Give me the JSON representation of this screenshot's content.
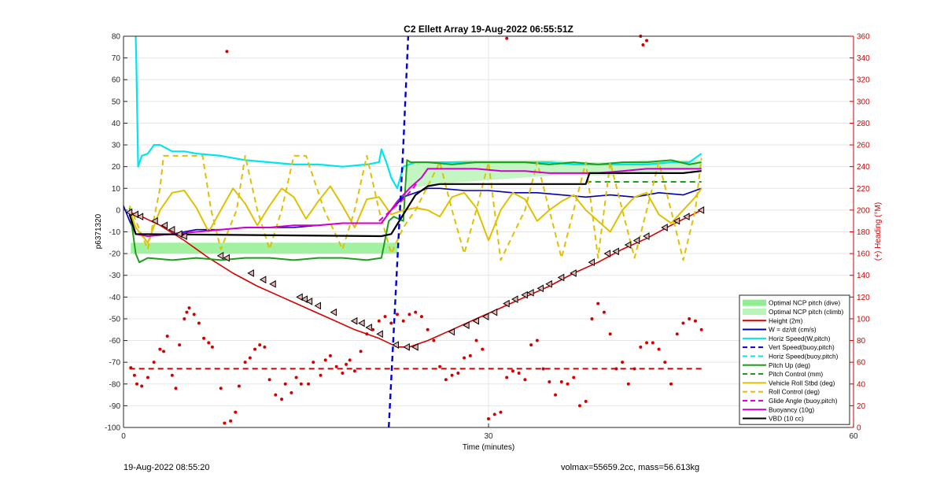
{
  "chart_data": {
    "type": "line",
    "title": "C2 Ellett Array 19-Aug-2022 06:55:51Z",
    "xlabel": "Time (minutes)",
    "ylabel_left": "p6371320",
    "ylabel_right": "(+) Heading (°M)",
    "xlim": [
      0,
      60
    ],
    "ylim_left": [
      -100,
      80
    ],
    "ylim_right": [
      0,
      360
    ],
    "x_ticks": [
      0,
      30,
      60
    ],
    "y_ticks_left": [
      80,
      70,
      60,
      50,
      40,
      30,
      20,
      10,
      0,
      -10,
      -20,
      -30,
      -40,
      -50,
      -60,
      -70,
      -80,
      -90,
      -100
    ],
    "y_ticks_right": [
      360,
      340,
      320,
      300,
      280,
      260,
      240,
      220,
      200,
      180,
      160,
      140,
      120,
      100,
      80,
      60,
      40,
      20,
      0
    ],
    "grid": true,
    "legend_position": "bottom-right",
    "colors": {
      "height": "#d40000",
      "w": "#0000b0",
      "horiz_speed": "#00e5ee",
      "vert_speed_buoy": "#0000d0",
      "pitch_up": "#1aa01a",
      "roll": "#e0c000",
      "glide": "#e000e0",
      "buoyancy": "#d000d0",
      "vbd": "#000000",
      "optimal": "#90ee90",
      "heading": "#d40000",
      "right_axis": "#d40000"
    },
    "legend": [
      {
        "label": "Optimal NCP pitch (dive)",
        "style": "patch",
        "color": "#90ee90"
      },
      {
        "label": "Optimal NCP pitch (climb)",
        "style": "patch",
        "color": "#b8f5b8"
      },
      {
        "label": "Height (2m)",
        "style": "solid",
        "color": "#d40000"
      },
      {
        "label": "W = dz/dt (cm/s)",
        "style": "solid",
        "color": "#0000b0"
      },
      {
        "label": "Horiz Speed(W,pitch)",
        "style": "solid",
        "color": "#00e5ee"
      },
      {
        "label": "Vert Speed(buoy,pitch)",
        "style": "dashed",
        "color": "#0000d0"
      },
      {
        "label": "Horiz Speed(buoy,pitch)",
        "style": "dashed",
        "color": "#00e5ee"
      },
      {
        "label": "Pitch Up (deg)",
        "style": "solid",
        "color": "#1aa01a"
      },
      {
        "label": "Pitch Control (mm)",
        "style": "dashed",
        "color": "#1aa01a"
      },
      {
        "label": "Vehicle Roll Stbd (deg)",
        "style": "solid",
        "color": "#e0c000"
      },
      {
        "label": "Roll Control (deg)",
        "style": "dashed",
        "color": "#e0c000"
      },
      {
        "label": "Glide Angle (buoy,pitch)",
        "style": "dashed",
        "color": "#e000e0"
      },
      {
        "label": "Buoyancy (10g)",
        "style": "solid",
        "color": "#d000d0"
      },
      {
        "label": "VBD (10 cc)",
        "style": "solid",
        "color": "#000000"
      }
    ],
    "series": [
      {
        "name": "Height (2m)",
        "color": "#d40000",
        "style": "solid",
        "width": 1.6,
        "x": [
          0.5,
          1.5,
          3,
          5,
          7,
          9,
          11,
          13,
          15,
          17,
          19,
          21,
          22.5,
          23.5,
          25,
          27,
          29,
          31,
          33,
          35,
          37,
          39,
          41,
          43,
          45,
          47.5
        ],
        "y": [
          -1,
          -3,
          -7,
          -14,
          -22,
          -29,
          -35,
          -40,
          -45,
          -50,
          -55,
          -59,
          -63,
          -63,
          -60,
          -55,
          -50,
          -45,
          -40,
          -35,
          -29,
          -24,
          -18,
          -13,
          -7,
          0
        ]
      },
      {
        "name": "Height markers",
        "color": "#000000",
        "style": "triangle-marker",
        "width": 1,
        "x": [
          0.5,
          1.0,
          1.4,
          2.6,
          3.4,
          4.0,
          4.6,
          5.0,
          8.0,
          8.5,
          10.5,
          11.5,
          12.3,
          14.5,
          14.9,
          15.3,
          16.0,
          17.3,
          19.0,
          19.6,
          20.2,
          21.1,
          22.4,
          23.3,
          24.0,
          27.0,
          28.2,
          29.0,
          29.8,
          30.5,
          31.5,
          32.2,
          33.0,
          33.5,
          34.3,
          35.0,
          36.0,
          37.0,
          38.5,
          39.8,
          40.5,
          41.5,
          42.2,
          43.0,
          44.5,
          45.5,
          46.3,
          47.5
        ],
        "y": [
          -1,
          -2,
          -3,
          -5,
          -7,
          -9,
          -11,
          -12,
          -21,
          -22,
          -29,
          -32,
          -34,
          -40,
          -41,
          -42,
          -44,
          -47,
          -51,
          -52,
          -54,
          -57,
          -62,
          -63,
          -63,
          -56,
          -53,
          -51,
          -49,
          -47,
          -43,
          -41,
          -39,
          -38,
          -36,
          -34,
          -31,
          -29,
          -24,
          -20,
          -19,
          -16,
          -14,
          -12,
          -8,
          -5,
          -3,
          0
        ]
      },
      {
        "name": "W = dz/dt (cm/s)",
        "color": "#0000b0",
        "style": "solid",
        "width": 1.6,
        "x": [
          0,
          0.5,
          1,
          2,
          4,
          6,
          8,
          10,
          12,
          14,
          16,
          18,
          20,
          21.2,
          22,
          22.5,
          23,
          24,
          25,
          26,
          28,
          30,
          32,
          34,
          36,
          38,
          40,
          42,
          44,
          46,
          47.5
        ],
        "y": [
          2,
          -5,
          -11,
          -12,
          -11,
          -9,
          -9,
          -8,
          -8,
          -8,
          -7,
          -6,
          -6,
          -6,
          0,
          3,
          6,
          8,
          10,
          10,
          9,
          9,
          8,
          8,
          7,
          6,
          7,
          6,
          8,
          7,
          10
        ]
      },
      {
        "name": "Horiz Speed(W,pitch)",
        "color": "#00e5ee",
        "style": "solid",
        "width": 2.2,
        "x": [
          1,
          1.05,
          1.2,
          1.5,
          2,
          2.5,
          3,
          4,
          5,
          6,
          8,
          10,
          12,
          14,
          16,
          18,
          20,
          21,
          21.2,
          21.6,
          22,
          22.5,
          23,
          24,
          25,
          27,
          29,
          31,
          33,
          35,
          37,
          39,
          41,
          43,
          45,
          46.5,
          47.5
        ],
        "y": [
          80,
          70,
          20,
          25,
          26,
          30,
          30,
          27,
          27,
          26,
          25,
          23,
          22,
          21,
          21,
          20,
          21,
          22,
          28,
          22,
          15,
          10,
          20,
          22,
          22,
          22,
          22,
          22,
          22,
          22,
          21,
          21,
          21,
          21,
          22,
          22,
          26
        ]
      },
      {
        "name": "Pitch Up (deg)",
        "color": "#1aa01a",
        "style": "solid",
        "width": 2,
        "x": [
          0.5,
          1,
          1.3,
          2,
          4,
          6,
          8,
          10,
          12,
          14,
          16,
          18,
          20,
          21.2,
          21.8,
          22.2,
          23,
          23.3,
          23.6,
          25,
          27,
          29,
          31,
          33,
          35,
          37,
          39,
          41,
          43,
          45,
          46.5,
          47.5
        ],
        "y": [
          1,
          -20,
          -24,
          -22,
          -23,
          -22,
          -23,
          -22,
          -22,
          -23,
          -22,
          -22,
          -23,
          -22,
          -5,
          -3,
          -5,
          23,
          22,
          22,
          21,
          22,
          22,
          22,
          21,
          22,
          21,
          22,
          22,
          23,
          21,
          22
        ]
      },
      {
        "name": "Pitch Control (mm)",
        "color": "#1aa01a",
        "style": "dashed",
        "width": 2,
        "x": [
          38,
          47.5
        ],
        "y": [
          13,
          13
        ]
      },
      {
        "name": "Vehicle Roll Stbd (deg)",
        "color": "#e0c000",
        "style": "solid",
        "width": 2,
        "x": [
          0.5,
          1,
          2,
          3,
          4,
          5,
          6,
          7,
          8,
          9,
          10,
          11,
          12,
          13,
          14,
          15,
          16,
          17,
          18,
          19,
          20,
          21,
          22,
          23,
          24,
          25,
          26,
          27,
          28,
          29,
          30,
          31,
          32,
          33,
          34,
          35,
          36,
          37,
          38,
          39,
          40,
          41,
          42,
          43,
          44,
          45,
          46,
          47,
          47.5
        ],
        "y": [
          0,
          -8,
          -15,
          0,
          8,
          9,
          1,
          -10,
          0,
          10,
          3,
          -7,
          2,
          10,
          6,
          -4,
          4,
          11,
          2,
          -8,
          5,
          6,
          -2,
          0,
          1,
          0,
          -3,
          6,
          8,
          1,
          -14,
          0,
          8,
          5,
          -5,
          0,
          4,
          7,
          0,
          -5,
          -10,
          0,
          6,
          8,
          -2,
          -6,
          0,
          6,
          10
        ]
      },
      {
        "name": "Roll Control (deg)",
        "color": "#e0c000",
        "style": "dashed",
        "width": 2,
        "x": [
          0.5,
          2,
          3,
          3.3,
          5,
          6.5,
          7.2,
          8,
          9.3,
          10,
          11,
          12,
          13,
          14,
          15,
          16.5,
          18,
          19,
          20,
          21,
          22,
          23,
          24,
          26,
          27,
          28,
          29,
          30,
          31,
          33,
          34,
          35,
          36,
          37,
          38,
          39,
          40,
          41,
          42,
          43,
          44,
          45,
          46,
          47,
          47.5
        ],
        "y": [
          2,
          -18,
          10,
          25,
          25,
          25,
          0,
          -18,
          0,
          25,
          0,
          -18,
          0,
          25,
          25,
          0,
          -18,
          0,
          25,
          0,
          -20,
          -8,
          0,
          22,
          0,
          -20,
          0,
          22,
          -23,
          0,
          22,
          0,
          -22,
          0,
          22,
          -22,
          22,
          0,
          -22,
          0,
          22,
          0,
          -23,
          0,
          24
        ]
      },
      {
        "name": "Glide Angle (buoy,pitch)",
        "color": "#e000e0",
        "style": "dashed",
        "width": 2,
        "x": [
          21,
          22,
          23,
          23.8,
          24.3
        ],
        "y": [
          -5,
          0,
          5,
          10,
          14
        ]
      },
      {
        "name": "Buoyancy (10g)",
        "color": "#d000d0",
        "style": "solid",
        "width": 2,
        "x": [
          0.5,
          1,
          2,
          4,
          6,
          8,
          10,
          12,
          14,
          16,
          18,
          20,
          21.2,
          22.5,
          23.5,
          24.5,
          25,
          27,
          29,
          31,
          33,
          35,
          37,
          39,
          41,
          43,
          45,
          47.5
        ],
        "y": [
          -2,
          -11,
          -12,
          -11,
          -10,
          -9,
          -8,
          -8,
          -7,
          -7,
          -6,
          -6,
          -6,
          4,
          10,
          15,
          19,
          19,
          19,
          18,
          18,
          17,
          17,
          17,
          18,
          19,
          19,
          19
        ]
      },
      {
        "name": "VBD (10 cc)",
        "color": "#000000",
        "style": "solid",
        "width": 2.2,
        "x": [
          0.5,
          1,
          21.2,
          22,
          23,
          24,
          25,
          26,
          38,
          38.3,
          45,
          46,
          47.5
        ],
        "y": [
          -2,
          -11,
          -12,
          -11,
          -2,
          7,
          11,
          12,
          12,
          17,
          17,
          17,
          18
        ]
      },
      {
        "name": "Vert Speed(buoy,pitch)",
        "color": "#0000d0",
        "style": "dashed",
        "width": 2.4,
        "x": [
          21.8,
          23.0,
          23.4
        ],
        "y": [
          -100,
          30,
          80
        ]
      },
      {
        "name": "Heading mean",
        "color": "#d40000",
        "style": "dashed",
        "width": 2,
        "x": [
          0.5,
          47.5
        ],
        "y": [
          -73,
          -73
        ]
      }
    ],
    "bands": [
      {
        "name": "Optimal NCP pitch (dive)",
        "color": "#90ee90",
        "x": [
          0.6,
          22.5
        ],
        "y0": -15,
        "y1": -20
      },
      {
        "name": "Optimal NCP pitch (climb)",
        "color": "#b8f5b8",
        "x_start": 23.3,
        "x_end": 47.5,
        "upper": [
          22,
          22,
          23,
          23,
          23,
          23,
          22,
          22,
          23,
          23,
          23
        ],
        "lower": [
          10,
          12,
          13,
          14,
          15,
          16,
          16,
          16,
          17,
          18,
          19
        ]
      }
    ],
    "heading_points": {
      "x": [
        0.6,
        0.9,
        1.1,
        1.5,
        2.0,
        2.5,
        3.0,
        3.3,
        3.6,
        4.0,
        4.3,
        4.6,
        5.0,
        5.2,
        5.4,
        5.8,
        6.2,
        6.6,
        7.0,
        7.3,
        8.0,
        8.3,
        8.8,
        9.2,
        9.5,
        10.0,
        10.4,
        10.8,
        11.2,
        11.6,
        12.0,
        12.5,
        13.0,
        13.3,
        13.8,
        14.2,
        14.6,
        15.2,
        15.6,
        16.2,
        16.6,
        17.0,
        17.5,
        18.0,
        18.3,
        18.6,
        19.0,
        19.5,
        20.0,
        20.5,
        21.0,
        21.5,
        22.0,
        22.5,
        23.0,
        23.5,
        24.0,
        24.5,
        25.0,
        25.5,
        26.0,
        26.5,
        27.0,
        27.5,
        28.0,
        28.5,
        29.0,
        29.5,
        30.0,
        30.5,
        31.0,
        31.5,
        32.0,
        32.5,
        33.0,
        33.5,
        34.0,
        34.5,
        35.0,
        35.5,
        36.0,
        36.5,
        37.0,
        37.5,
        38.0,
        38.5,
        39.0,
        39.5,
        40.0,
        40.5,
        41.0,
        41.5,
        42.0,
        42.5,
        43.0,
        43.5,
        44.0,
        44.5,
        45.0,
        45.5,
        46.0,
        46.5,
        47.0,
        47.5,
        8.5,
        31.5,
        42.5,
        42.7,
        43.0
      ],
      "y": [
        55,
        48,
        40,
        38,
        46,
        60,
        72,
        70,
        84,
        48,
        36,
        76,
        100,
        106,
        110,
        104,
        96,
        82,
        78,
        74,
        36,
        4,
        6,
        14,
        38,
        60,
        64,
        72,
        76,
        74,
        44,
        30,
        26,
        40,
        32,
        46,
        40,
        40,
        60,
        48,
        62,
        66,
        56,
        50,
        58,
        62,
        52,
        70,
        86,
        90,
        98,
        102,
        96,
        104,
        98,
        104,
        106,
        102,
        90,
        80,
        56,
        44,
        48,
        50,
        64,
        66,
        80,
        72,
        8,
        12,
        14,
        46,
        52,
        50,
        44,
        76,
        80,
        54,
        42,
        30,
        42,
        40,
        46,
        20,
        24,
        100,
        114,
        106,
        86,
        54,
        60,
        40,
        54,
        74,
        78,
        78,
        72,
        60,
        40,
        86,
        96,
        100,
        98,
        90,
        346,
        358,
        360,
        352,
        356
      ]
    }
  },
  "footer": {
    "left": "19-Aug-2022 08:55:20",
    "right": "volmax=55659.2cc, mass=56.613kg"
  }
}
